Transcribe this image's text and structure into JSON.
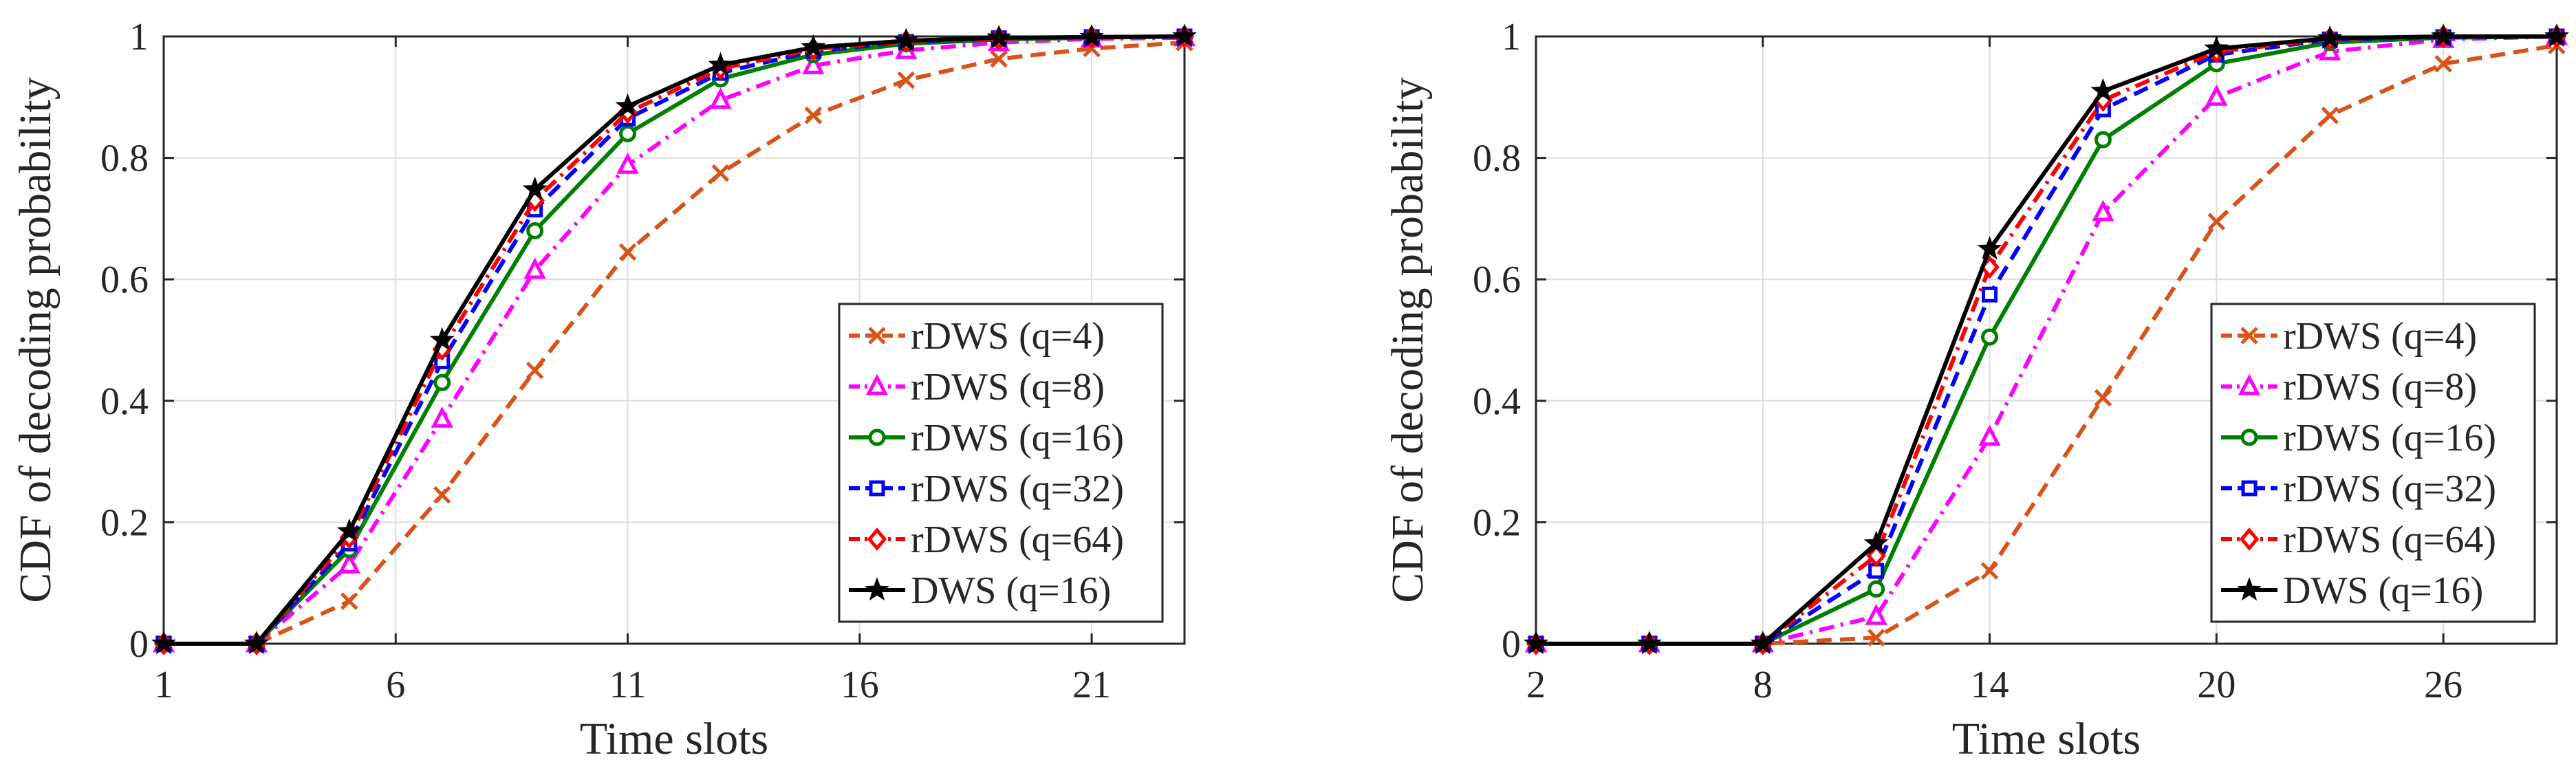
{
  "chart_data": [
    {
      "type": "line",
      "title": "",
      "xlabel": "Time slots",
      "ylabel": "CDF of decoding probability",
      "xlim": [
        1,
        23
      ],
      "ylim": [
        0,
        1
      ],
      "xticks": [
        1,
        6,
        11,
        16,
        21
      ],
      "yticks": [
        0,
        0.2,
        0.4,
        0.6,
        0.8,
        1
      ],
      "xtick_labels": [
        "1",
        "6",
        "11",
        "16",
        "21"
      ],
      "ytick_labels": [
        "0",
        "0.2",
        "0.4",
        "0.6",
        "0.8",
        "1"
      ],
      "grid": true,
      "legend_position": "bottom-right",
      "x": [
        1,
        3,
        5,
        7,
        9,
        11,
        13,
        15,
        17,
        19,
        21,
        23
      ],
      "series": [
        {
          "name": "rDWS (q=4)",
          "color": "#D95319",
          "dash": "dashed",
          "marker": "x",
          "values": [
            0,
            0,
            0.07,
            0.245,
            0.45,
            0.645,
            0.775,
            0.87,
            0.928,
            0.963,
            0.98,
            0.99
          ]
        },
        {
          "name": "rDWS (q=8)",
          "color": "#FF00FF",
          "dash": "dashdot",
          "marker": "triangle",
          "values": [
            0,
            0,
            0.13,
            0.37,
            0.615,
            0.788,
            0.895,
            0.952,
            0.977,
            0.99,
            0.996,
            0.998
          ]
        },
        {
          "name": "rDWS (q=16)",
          "color": "#007F00",
          "dash": "solid",
          "marker": "circle",
          "values": [
            0,
            0,
            0.155,
            0.43,
            0.68,
            0.84,
            0.93,
            0.97,
            0.988,
            0.995,
            0.998,
            1
          ]
        },
        {
          "name": "rDWS (q=32)",
          "color": "#0000FF",
          "dash": "dashed",
          "marker": "square",
          "values": [
            0,
            0,
            0.165,
            0.465,
            0.715,
            0.865,
            0.94,
            0.976,
            0.991,
            0.997,
            0.999,
            1
          ]
        },
        {
          "name": "rDWS (q=64)",
          "color": "#FF0000",
          "dash": "dashdot",
          "marker": "diamond",
          "values": [
            0,
            0,
            0.175,
            0.485,
            0.73,
            0.875,
            0.947,
            0.979,
            0.992,
            0.997,
            0.999,
            1
          ]
        },
        {
          "name": "DWS (q=16)",
          "color": "#000000",
          "dash": "solid",
          "marker": "star",
          "values": [
            0,
            0,
            0.185,
            0.5,
            0.748,
            0.885,
            0.953,
            0.982,
            0.993,
            0.998,
            0.999,
            1
          ]
        }
      ]
    },
    {
      "type": "line",
      "title": "",
      "xlabel": "Time slots",
      "ylabel": "CDF of decoding probability",
      "xlim": [
        2,
        29
      ],
      "ylim": [
        0,
        1
      ],
      "xticks": [
        2,
        8,
        14,
        20,
        26
      ],
      "yticks": [
        0,
        0.2,
        0.4,
        0.6,
        0.8,
        1
      ],
      "xtick_labels": [
        "2",
        "8",
        "14",
        "20",
        "26"
      ],
      "ytick_labels": [
        "0",
        "0.2",
        "0.4",
        "0.6",
        "0.8",
        "1"
      ],
      "grid": true,
      "legend_position": "bottom-right",
      "x": [
        2,
        5,
        8,
        11,
        14,
        17,
        20,
        23,
        26,
        29
      ],
      "series": [
        {
          "name": "rDWS (q=4)",
          "color": "#D95319",
          "dash": "dashed",
          "marker": "x",
          "values": [
            0,
            0,
            0,
            0.01,
            0.12,
            0.405,
            0.695,
            0.87,
            0.955,
            0.985
          ]
        },
        {
          "name": "rDWS (q=8)",
          "color": "#FF00FF",
          "dash": "dashdot",
          "marker": "triangle",
          "values": [
            0,
            0,
            0,
            0.045,
            0.34,
            0.71,
            0.9,
            0.975,
            0.995,
            1
          ]
        },
        {
          "name": "rDWS (q=16)",
          "color": "#007F00",
          "dash": "solid",
          "marker": "circle",
          "values": [
            0,
            0,
            0,
            0.09,
            0.505,
            0.83,
            0.955,
            0.99,
            0.998,
            1
          ]
        },
        {
          "name": "rDWS (q=32)",
          "color": "#0000FF",
          "dash": "dashed",
          "marker": "square",
          "values": [
            0,
            0,
            0,
            0.12,
            0.575,
            0.88,
            0.97,
            0.995,
            0.999,
            1
          ]
        },
        {
          "name": "rDWS (q=64)",
          "color": "#FF0000",
          "dash": "dashdot",
          "marker": "diamond",
          "values": [
            0,
            0,
            0,
            0.145,
            0.62,
            0.895,
            0.975,
            0.996,
            1,
            1
          ]
        },
        {
          "name": "DWS (q=16)",
          "color": "#000000",
          "dash": "solid",
          "marker": "star",
          "values": [
            0,
            0,
            0,
            0.165,
            0.65,
            0.91,
            0.98,
            0.997,
            1,
            1
          ]
        }
      ]
    }
  ]
}
